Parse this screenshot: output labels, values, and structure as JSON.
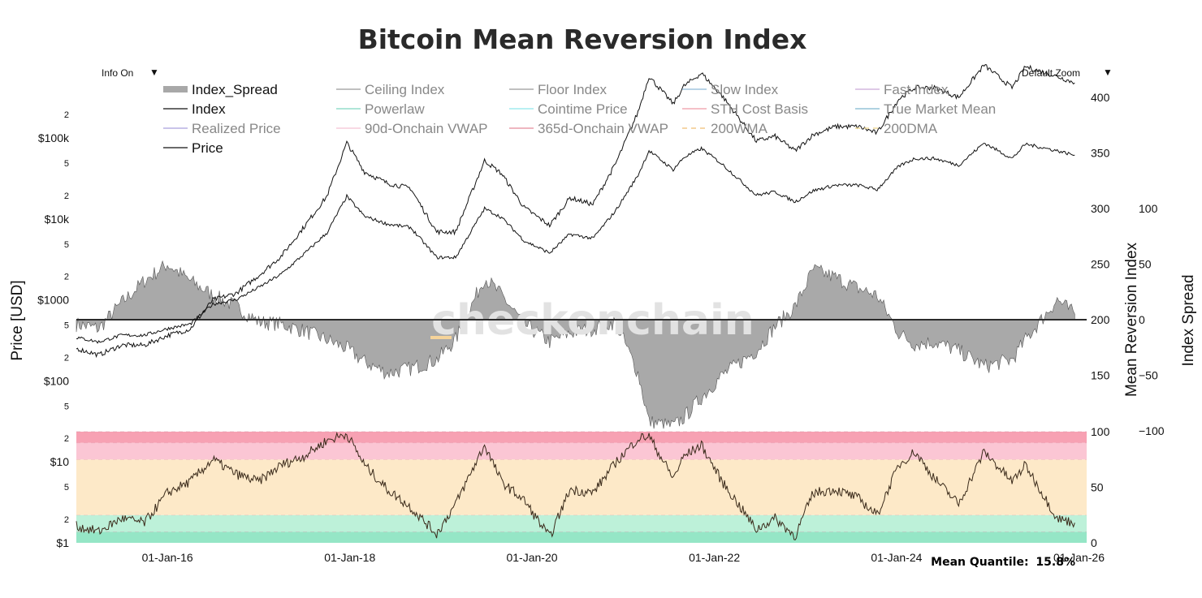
{
  "title": "Bitcoin Mean Reversion Index",
  "controls": {
    "info": "Info On",
    "zoom": "Default Zoom",
    "caret": "▼"
  },
  "watermark": "checkonchain",
  "footer": {
    "label": "Mean Quantile:",
    "value": "15.8%"
  },
  "axes": {
    "price_title": "Price [USD]",
    "mri_title": "Mean Reversion Index",
    "spread_title": "Index Spread",
    "price_ticks": [
      {
        "label": "$1",
        "value": 1,
        "size": "big"
      },
      {
        "label": "2",
        "value": 2,
        "size": "small"
      },
      {
        "label": "5",
        "value": 5,
        "size": "small"
      },
      {
        "label": "$10",
        "value": 10,
        "size": "big"
      },
      {
        "label": "2",
        "value": 20,
        "size": "small"
      },
      {
        "label": "5",
        "value": 50,
        "size": "small"
      },
      {
        "label": "$100",
        "value": 100,
        "size": "big"
      },
      {
        "label": "2",
        "value": 200,
        "size": "small"
      },
      {
        "label": "5",
        "value": 500,
        "size": "small"
      },
      {
        "label": "$1000",
        "value": 1000,
        "size": "big"
      },
      {
        "label": "2",
        "value": 2000,
        "size": "small"
      },
      {
        "label": "5",
        "value": 5000,
        "size": "small"
      },
      {
        "label": "$10k",
        "value": 10000,
        "size": "big"
      },
      {
        "label": "2",
        "value": 20000,
        "size": "small"
      },
      {
        "label": "5",
        "value": 50000,
        "size": "small"
      },
      {
        "label": "$100k",
        "value": 100000,
        "size": "big"
      },
      {
        "label": "2",
        "value": 200000,
        "size": "small"
      }
    ],
    "mri_ticks": [
      "400",
      "350",
      "300",
      "250",
      "200",
      "150"
    ],
    "spread_ticks": [
      "100",
      "50",
      "0",
      "−50",
      "−100"
    ],
    "quantile_ticks": [
      "100",
      "50",
      "0"
    ],
    "x_ticks": [
      "01-Jan-16",
      "01-Jan-18",
      "01-Jan-20",
      "01-Jan-22",
      "01-Jan-24",
      "01-Jan-26"
    ]
  },
  "legend": [
    {
      "label": "Index_Spread",
      "color": "#a8a8a8",
      "style": "band",
      "active": true
    },
    {
      "label": "Ceiling Index",
      "color": "#9a9a9a",
      "style": "line",
      "active": false
    },
    {
      "label": "Floor Index",
      "color": "#9a9a9a",
      "style": "line",
      "active": false
    },
    {
      "label": "Slow Index",
      "color": "#8fb9d8",
      "style": "line",
      "active": false
    },
    {
      "label": "Fast Index",
      "color": "#c9a9d6",
      "style": "line",
      "active": false
    },
    {
      "label": "Index",
      "color": "#111111",
      "style": "line",
      "active": true
    },
    {
      "label": "Powerlaw",
      "color": "#7fd8c0",
      "style": "line",
      "active": false
    },
    {
      "label": "Cointime Price",
      "color": "#8fe6ec",
      "style": "line",
      "active": false
    },
    {
      "label": "STH Cost Basis",
      "color": "#ef9aa8",
      "style": "line",
      "active": false
    },
    {
      "label": "True Market Mean",
      "color": "#7fb6cf",
      "style": "line",
      "active": false
    },
    {
      "label": "Realized Price",
      "color": "#a9a0de",
      "style": "line",
      "active": false
    },
    {
      "label": "90d-Onchain VWAP",
      "color": "#f4c2d4",
      "style": "line",
      "active": false
    },
    {
      "label": "365d-Onchain VWAP",
      "color": "#e48a9a",
      "style": "line",
      "active": false
    },
    {
      "label": "200WMA",
      "color": "#f2c98a",
      "style": "dash",
      "active": false
    },
    {
      "label": "200DMA",
      "color": "#f0dc9c",
      "style": "dash",
      "active": false
    },
    {
      "label": "Price",
      "color": "#111111",
      "style": "line",
      "active": true
    }
  ],
  "colors": {
    "spread_fill": "#a9a9a9",
    "spread_edge": "#555555",
    "index_line": "#111111",
    "quantile_line": "#3a2a1a",
    "zero_line": "#2b2b2b",
    "bands": [
      "#95e6c6",
      "#bdf1d9",
      "#fde9c8",
      "#fbc6d4",
      "#f7a1b3"
    ],
    "watermark_dash": "#f6d49a"
  },
  "chart_data": [
    {
      "type": "line",
      "name": "Index",
      "ylabel": "Mean Reversion Index",
      "ylim": [
        100,
        400
      ],
      "x": [
        "2015-01-01",
        "2015-04-01",
        "2015-07-01",
        "2015-10-01",
        "2016-01-01",
        "2016-04-01",
        "2016-07-01",
        "2016-10-01",
        "2017-01-01",
        "2017-04-01",
        "2017-07-01",
        "2017-10-01",
        "2017-12-20",
        "2018-03-01",
        "2018-06-01",
        "2018-09-01",
        "2018-12-15",
        "2019-03-01",
        "2019-06-25",
        "2019-09-01",
        "2019-12-01",
        "2020-03-12",
        "2020-06-01",
        "2020-09-01",
        "2020-12-01",
        "2021-03-01",
        "2021-04-14",
        "2021-07-20",
        "2021-09-01",
        "2021-11-10",
        "2022-02-01",
        "2022-06-18",
        "2022-09-01",
        "2022-11-21",
        "2023-02-01",
        "2023-05-01",
        "2023-08-01",
        "2023-10-15",
        "2024-01-10",
        "2024-03-14",
        "2024-06-01",
        "2024-09-06",
        "2024-12-17",
        "2025-04-08",
        "2025-06-01",
        "2025-10-06",
        "2025-12-15"
      ],
      "values": [
        184,
        180,
        186,
        186,
        192,
        196,
        214,
        218,
        229,
        241,
        259,
        278,
        311,
        293,
        286,
        283,
        256,
        256,
        300,
        292,
        271,
        260,
        277,
        273,
        298,
        330,
        352,
        335,
        346,
        354,
        340,
        312,
        315,
        306,
        316,
        321,
        321,
        317,
        338,
        345,
        345,
        339,
        359,
        345,
        358,
        352,
        348
      ]
    },
    {
      "type": "area",
      "name": "Index_Spread",
      "ylabel": "Index Spread",
      "ylim": [
        -100,
        100
      ],
      "x": [
        "2015-01-01",
        "2015-04-01",
        "2015-07-01",
        "2015-10-01",
        "2016-01-01",
        "2016-04-01",
        "2016-07-01",
        "2016-10-01",
        "2017-01-01",
        "2017-04-01",
        "2017-07-01",
        "2017-10-01",
        "2017-12-20",
        "2018-03-01",
        "2018-06-01",
        "2018-09-01",
        "2018-12-15",
        "2019-03-01",
        "2019-06-25",
        "2019-09-01",
        "2019-12-01",
        "2020-03-12",
        "2020-06-01",
        "2020-09-01",
        "2020-12-01",
        "2021-03-01",
        "2021-04-14",
        "2021-07-20",
        "2021-09-01",
        "2021-11-10",
        "2022-02-01",
        "2022-06-18",
        "2022-09-01",
        "2022-11-21",
        "2023-02-01",
        "2023-05-01",
        "2023-08-01",
        "2023-10-15",
        "2024-01-10",
        "2024-03-14",
        "2024-06-01",
        "2024-09-06",
        "2024-12-17",
        "2025-04-08",
        "2025-06-01",
        "2025-10-06",
        "2025-12-15"
      ],
      "values": [
        -4,
        -8,
        15,
        35,
        50,
        35,
        22,
        12,
        -2,
        -4,
        -10,
        -18,
        -26,
        -38,
        -48,
        -44,
        -36,
        -18,
        38,
        22,
        -4,
        -20,
        -12,
        -8,
        -2,
        -48,
        -92,
        -96,
        -88,
        -70,
        -50,
        -28,
        -6,
        12,
        45,
        38,
        28,
        22,
        -12,
        -22,
        -20,
        -28,
        -42,
        -36,
        -18,
        18,
        5
      ]
    },
    {
      "type": "line",
      "name": "Price",
      "ylabel": "Price [USD]",
      "ylim": [
        1,
        250000
      ],
      "x": [
        "2015-01-01",
        "2015-04-01",
        "2015-07-01",
        "2015-10-01",
        "2016-01-01",
        "2016-04-01",
        "2016-07-01",
        "2016-10-01",
        "2017-01-01",
        "2017-04-01",
        "2017-07-01",
        "2017-10-01",
        "2017-12-20",
        "2018-03-01",
        "2018-06-01",
        "2018-09-01",
        "2018-12-15",
        "2019-03-01",
        "2019-06-25",
        "2019-09-01",
        "2019-12-01",
        "2020-03-12",
        "2020-06-01",
        "2020-09-01",
        "2020-12-01",
        "2021-03-01",
        "2021-04-14",
        "2021-07-20",
        "2021-09-01",
        "2021-11-10",
        "2022-02-01",
        "2022-06-18",
        "2022-09-01",
        "2022-11-21",
        "2023-02-01",
        "2023-05-01",
        "2023-08-01",
        "2023-10-15",
        "2024-01-10",
        "2024-03-14",
        "2024-06-01",
        "2024-09-06",
        "2024-12-17",
        "2025-04-08",
        "2025-06-01",
        "2025-10-06",
        "2025-12-15"
      ]
    },
    {
      "type": "line",
      "name": "Quantile",
      "ylim": [
        0,
        100
      ],
      "x": [
        "2015-01-01",
        "2015-04-01",
        "2015-07-01",
        "2015-10-01",
        "2016-01-01",
        "2016-04-01",
        "2016-07-01",
        "2016-10-01",
        "2017-01-01",
        "2017-04-01",
        "2017-07-01",
        "2017-10-01",
        "2017-12-20",
        "2018-03-01",
        "2018-06-01",
        "2018-09-01",
        "2018-12-15",
        "2019-03-01",
        "2019-06-25",
        "2019-09-01",
        "2019-12-01",
        "2020-03-12",
        "2020-06-01",
        "2020-09-01",
        "2020-12-01",
        "2021-03-01",
        "2021-04-14",
        "2021-07-20",
        "2021-09-01",
        "2021-11-10",
        "2022-02-01",
        "2022-06-18",
        "2022-09-01",
        "2022-11-21",
        "2023-02-01",
        "2023-05-01",
        "2023-08-01",
        "2023-10-15",
        "2024-01-10",
        "2024-03-14",
        "2024-06-01",
        "2024-09-06",
        "2024-12-17",
        "2025-04-08",
        "2025-06-01",
        "2025-10-06",
        "2025-12-15"
      ],
      "values": [
        15,
        10,
        22,
        18,
        45,
        55,
        75,
        62,
        55,
        70,
        78,
        92,
        98,
        70,
        48,
        32,
        8,
        35,
        88,
        55,
        38,
        5,
        48,
        45,
        72,
        94,
        96,
        58,
        78,
        88,
        55,
        12,
        22,
        6,
        45,
        48,
        40,
        25,
        70,
        82,
        58,
        35,
        82,
        55,
        70,
        22,
        18
      ]
    }
  ]
}
